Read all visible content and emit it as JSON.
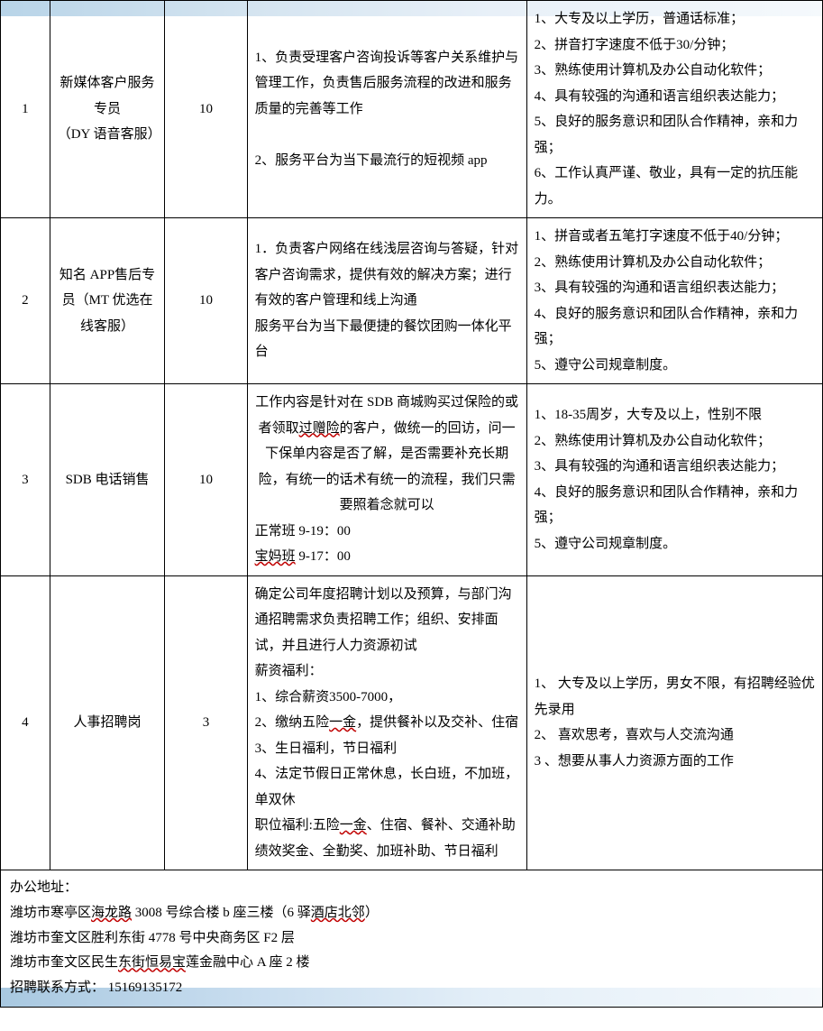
{
  "rows": [
    {
      "idx": "1",
      "title": "新媒体客户服务专员\n（DY 语音客服）",
      "count": "10",
      "desc": "1、负责受理客户咨询投诉等客户关系维护与管理工作，负责售后服务流程的改进和服务质量的完善等工作\n\n2、服务平台为当下最流行的短视频 app",
      "req": "1、大专及以上学历，普通话标准；\n2、拼音打字速度不低于30/分钟；\n3、熟练使用计算机及办公自动化软件；\n4、具有较强的沟通和语言组织表达能力；\n5、良好的服务意识和团队合作精神，亲和力强；\n6、工作认真严谨、敬业，具有一定的抗压能力。"
    },
    {
      "idx": "2",
      "title": "知名 APP售后专员（MT 优选在线客服）",
      "count": "10",
      "desc": "1．负责客户网络在线浅层咨询与答疑，针对客户咨询需求，提供有效的解决方案；进行有效的客户管理和线上沟通\n服务平台为当下最便捷的餐饮团购一体化平台",
      "req": "1、拼音或者五笔打字速度不低于40/分钟；\n2、熟练使用计算机及办公自动化软件；\n3、具有较强的沟通和语言组织表达能力；\n4、良好的服务意识和团队合作精神，亲和力强；\n5、遵守公司规章制度。"
    },
    {
      "idx": "3",
      "title": "SDB 电话销售",
      "count": "10",
      "desc_parts": {
        "p1": "工作内容是针对在 SDB 商城购买过保险的或者领取",
        "u1": "过赠险",
        "p2": "的客户，做统一的回访，问一下保单内容是否了解，是否需要补充长期险，有统一的话术有统一的流程，我们只需要照着念就可以",
        "p3": "正常班 9-19：00",
        "u2": "宝妈班",
        "p4": " 9-17：00"
      },
      "req": "1、18-35周岁，大专及以上，性别不限\n2、熟练使用计算机及办公自动化软件；\n3、具有较强的沟通和语言组织表达能力；\n4、良好的服务意识和团队合作精神，亲和力强；\n5、遵守公司规章制度。"
    },
    {
      "idx": "4",
      "title": "人事招聘岗",
      "count": "3",
      "desc_parts": {
        "p1": "确定公司年度招聘计划以及预算，与部门沟通招聘需求负责招聘工作；组织、安排面试，并且进行人力资源初试",
        "p2": "薪资福利：",
        "p3": "1、综合薪资3500-7000，",
        "p4": "2、缴纳五险",
        "u1": "一金",
        "p5": "，提供餐补以及交补、住宿",
        "p6": "3、生日福利，节日福利",
        "p7": "4、法定节假日正常休息，长白班，不加班，单双休",
        "p8": "职位福利:五险",
        "u2": "一金",
        "p9": "、住宿、餐补、交通补助绩效奖金、全勤奖、加班补助、节日福利"
      },
      "req": "1、 大专及以上学历，男女不限，有招聘经验优先录用\n2、 喜欢思考，喜欢与人交流沟通\n3 、想要从事人力资源方面的工作"
    }
  ],
  "footer": {
    "l1": "办公地址：",
    "l2a": "潍坊市寒亭区",
    "l2u": "海龙路",
    "l2b": " 3008 号综合楼 b 座三楼（6 驿",
    "l2u2": "酒店北邻",
    "l2c": "）",
    "l3": "潍坊市奎文区胜利东街 4778 号中央商务区 F2 层",
    "l4a": "潍坊市奎文区民生",
    "l4u": "东街恒易宝",
    "l4b": "莲金融中心 A 座 2 楼",
    "l5": "招聘联系方式： 15169135172"
  }
}
